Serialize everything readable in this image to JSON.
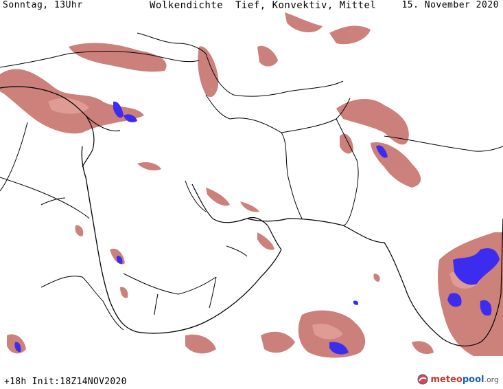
{
  "header": {
    "left": "Sonntag, 13Uhr",
    "center": "Wolkendichte  Tief, Konvektiv, Mittel",
    "right": "15. November 2020"
  },
  "footer": {
    "run_info": "+18h Init:18Z14NOV2020",
    "brand": {
      "part1": "meteo",
      "part2": "pool",
      "part3": ".org"
    }
  },
  "colors": {
    "cloud_low": "#b5554f",
    "cloud_mid": "#d8918a",
    "convective": "#3c2cf0",
    "border": "#000000"
  }
}
